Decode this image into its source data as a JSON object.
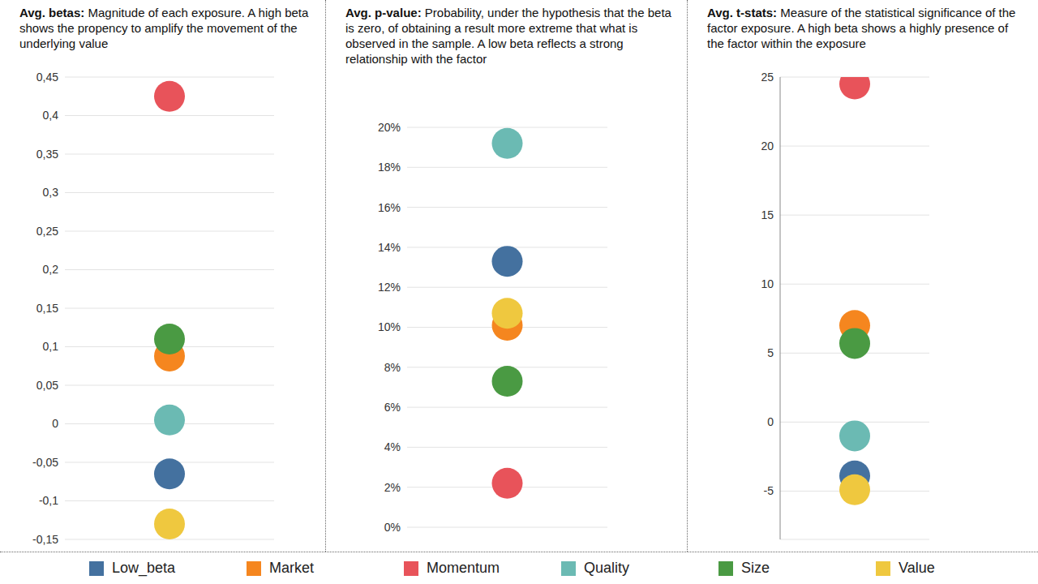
{
  "chart_data": [
    {
      "type": "scatter",
      "title": "Avg. betas:",
      "subtitle": "Magnitude of each exposure. A high beta shows the propency to amplify the movement of the underlying value",
      "series": [
        {
          "name": "Low_beta",
          "color": "#44719f",
          "values": [
            -0.065
          ]
        },
        {
          "name": "Market",
          "color": "#f5861f",
          "values": [
            0.088
          ]
        },
        {
          "name": "Momentum",
          "color": "#e8535a",
          "values": [
            0.425
          ]
        },
        {
          "name": "Quality",
          "color": "#6bbab3",
          "values": [
            0.005
          ]
        },
        {
          "name": "Size",
          "color": "#4a9a43",
          "values": [
            0.11
          ]
        },
        {
          "name": "Value",
          "color": "#efc83f",
          "values": [
            -0.13
          ]
        }
      ],
      "ylim": [
        -0.15,
        0.45
      ],
      "yticks": [
        {
          "value": -0.15,
          "label": "-0,15"
        },
        {
          "value": -0.1,
          "label": "-0,1"
        },
        {
          "value": -0.05,
          "label": "-0,05"
        },
        0,
        {
          "value": 0.05,
          "label": "0,05"
        },
        {
          "value": 0.1,
          "label": "0,1"
        },
        {
          "value": 0.15,
          "label": "0,15"
        },
        {
          "value": 0.2,
          "label": "0,2"
        },
        {
          "value": 0.25,
          "label": "0,25"
        },
        {
          "value": 0.3,
          "label": "0,3"
        },
        {
          "value": 0.35,
          "label": "0,35"
        },
        {
          "value": 0.4,
          "label": "0,4"
        },
        {
          "value": 0.45,
          "label": "0,45"
        }
      ],
      "grid": true,
      "legend": "bottom"
    },
    {
      "type": "scatter",
      "title": "Avg. p-value:",
      "subtitle": "Probability, under the hypothesis that the beta is zero, of obtaining a result more extreme that what is observed in the sample. A low beta reflects a strong relationship with the factor",
      "series": [
        {
          "name": "Low_beta",
          "color": "#44719f",
          "values": [
            13.3
          ]
        },
        {
          "name": "Market",
          "color": "#f5861f",
          "values": [
            10.1
          ]
        },
        {
          "name": "Momentum",
          "color": "#e8535a",
          "values": [
            2.2
          ]
        },
        {
          "name": "Quality",
          "color": "#6bbab3",
          "values": [
            19.2
          ]
        },
        {
          "name": "Size",
          "color": "#4a9a43",
          "values": [
            7.3
          ]
        },
        {
          "name": "Value",
          "color": "#efc83f",
          "values": [
            10.7
          ]
        }
      ],
      "ylim": [
        0,
        20
      ],
      "yticks": [
        {
          "value": 0,
          "label": "0%"
        },
        {
          "value": 2,
          "label": "2%"
        },
        {
          "value": 4,
          "label": "4%"
        },
        {
          "value": 6,
          "label": "6%"
        },
        {
          "value": 8,
          "label": "8%"
        },
        {
          "value": 10,
          "label": "10%"
        },
        {
          "value": 12,
          "label": "12%"
        },
        {
          "value": 14,
          "label": "14%"
        },
        {
          "value": 16,
          "label": "16%"
        },
        {
          "value": 18,
          "label": "18%"
        },
        {
          "value": 20,
          "label": "20%"
        }
      ],
      "grid": true
    },
    {
      "type": "scatter",
      "title": "Avg. t-stats:",
      "subtitle": "Measure of the statistical significance of the factor exposure. A high beta shows a highly presence of the factor within the exposure",
      "series": [
        {
          "name": "Low_beta",
          "color": "#44719f",
          "values": [
            -3.9
          ]
        },
        {
          "name": "Market",
          "color": "#f5861f",
          "values": [
            7.0
          ]
        },
        {
          "name": "Momentum",
          "color": "#e8535a",
          "values": [
            24.5
          ]
        },
        {
          "name": "Quality",
          "color": "#6bbab3",
          "values": [
            -1.0
          ]
        },
        {
          "name": "Size",
          "color": "#4a9a43",
          "values": [
            5.7
          ]
        },
        {
          "name": "Value",
          "color": "#efc83f",
          "values": [
            -4.9
          ]
        }
      ],
      "ylim": [
        -8.5,
        25
      ],
      "yticks": [
        -5,
        0,
        5,
        10,
        15,
        20,
        25
      ],
      "grid": true
    }
  ]
}
